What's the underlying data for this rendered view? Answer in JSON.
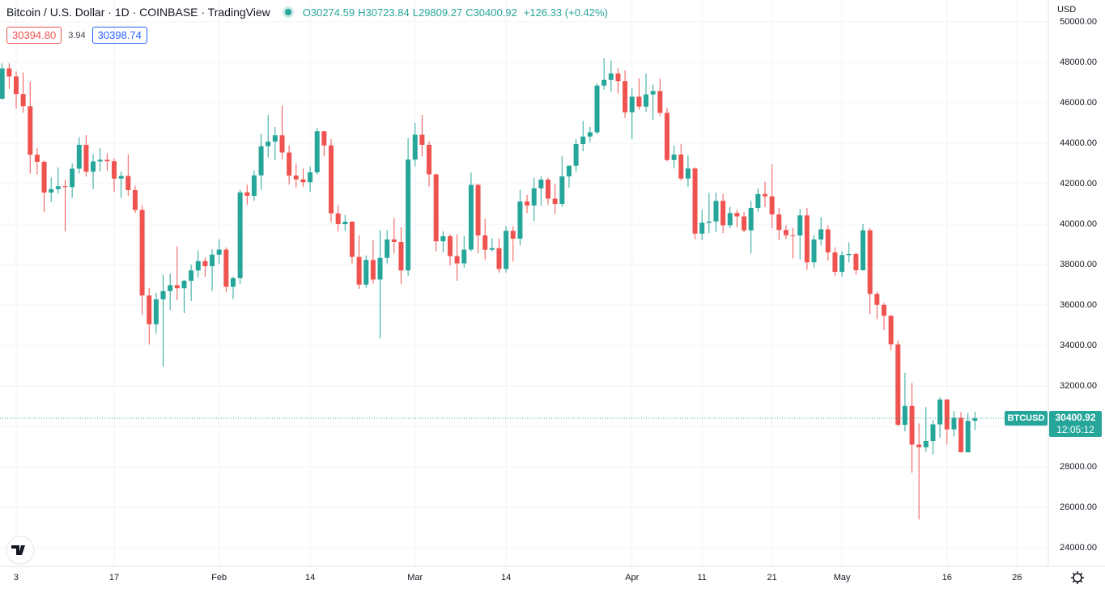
{
  "chart_data": {
    "type": "candlestick",
    "title": "Bitcoin / U.S. Dollar · 1D · COINBASE · TradingView",
    "ohlc_labels": [
      "O",
      "H",
      "L",
      "C"
    ],
    "change": "+126.33 (+0.42%)",
    "bid": "30394.80",
    "spread": "3.94",
    "ask": "30398.74",
    "currency": "USD",
    "symbol": "BTCUSD",
    "countdown": "12:05:12",
    "up_color": "#26a69a",
    "down_color": "#ef5350",
    "ylim": [
      23080,
      51080
    ],
    "yticks": [
      {
        "value": 24000,
        "label": "24000.00"
      },
      {
        "value": 26000,
        "label": "26000.00"
      },
      {
        "value": 28000,
        "label": "28000.00"
      },
      {
        "value": 30000,
        "label": "30000.00"
      },
      {
        "value": 32000,
        "label": "32000.00"
      },
      {
        "value": 34000,
        "label": "34000.00"
      },
      {
        "value": 36000,
        "label": "36000.00"
      },
      {
        "value": 38000,
        "label": "38000.00"
      },
      {
        "value": 40000,
        "label": "40000.00"
      },
      {
        "value": 42000,
        "label": "42000.00"
      },
      {
        "value": 44000,
        "label": "44000.00"
      },
      {
        "value": 46000,
        "label": "46000.00"
      },
      {
        "value": 48000,
        "label": "48000.00"
      },
      {
        "value": 50000,
        "label": "50000.00"
      }
    ],
    "grid": true,
    "categories": [
      null,
      null,
      "3",
      null,
      null,
      null,
      null,
      null,
      null,
      null,
      null,
      null,
      null,
      null,
      null,
      null,
      "17",
      null,
      null,
      null,
      null,
      null,
      null,
      null,
      null,
      null,
      null,
      null,
      null,
      null,
      null,
      "Feb",
      null,
      null,
      null,
      null,
      null,
      null,
      null,
      null,
      null,
      null,
      null,
      null,
      "14",
      null,
      null,
      null,
      null,
      null,
      null,
      null,
      null,
      null,
      null,
      null,
      null,
      null,
      null,
      "Mar",
      null,
      null,
      null,
      null,
      null,
      null,
      null,
      null,
      null,
      null,
      null,
      null,
      "14",
      null,
      null,
      null,
      null,
      null,
      null,
      null,
      null,
      null,
      null,
      null,
      null,
      null,
      null,
      null,
      null,
      null,
      "Apr",
      null,
      null,
      null,
      null,
      null,
      null,
      null,
      null,
      null,
      "11",
      null,
      null,
      null,
      null,
      null,
      null,
      null,
      null,
      null,
      "21",
      null,
      null,
      null,
      null,
      null,
      null,
      null,
      null,
      null,
      "May",
      null,
      null,
      null,
      null,
      null,
      null,
      null,
      null,
      null,
      null,
      null,
      null,
      null,
      null,
      "16",
      null,
      null,
      null,
      null,
      null,
      null,
      null,
      null,
      null,
      "26",
      null,
      null
    ],
    "open": [
      46200,
      47700,
      47300,
      46430,
      45830,
      43430,
      43080,
      41560,
      41730,
      41870,
      41830,
      42740,
      43920,
      42590,
      43100,
      43180,
      43110,
      42250,
      42380,
      41680,
      40700,
      36470,
      35050,
      36280,
      36690,
      36980,
      36830,
      37200,
      37710,
      38170,
      37920,
      38490,
      38740,
      36900,
      37330,
      41570,
      41400,
      42410,
      43850,
      44080,
      44390,
      43540,
      42400,
      42210,
      42070,
      42560,
      44590,
      43890,
      40530,
      40000,
      40120,
      38380,
      37010,
      38230,
      37260,
      38330,
      39240,
      39120,
      37710,
      43190,
      44420,
      43920,
      42460,
      39150,
      39400,
      38420,
      38060,
      38740,
      41940,
      39440,
      38730,
      38810,
      37780,
      39670,
      39280,
      41120,
      40920,
      41770,
      42200,
      41260,
      41000,
      42360,
      42890,
      43960,
      44330,
      44540,
      46850,
      47130,
      47450,
      47070,
      45530,
      46300,
      45810,
      46410,
      46580,
      45500,
      43170,
      43440,
      42250,
      42750,
      39530,
      40070,
      40130,
      41150,
      39940,
      40550,
      40380,
      39690,
      40800,
      41490,
      41370,
      40480,
      39710,
      39450,
      39440,
      40430,
      38110,
      39240,
      39740,
      38600,
      37640,
      38470,
      38520,
      37720,
      39690,
      36550,
      36010,
      35470,
      34060,
      30080,
      31010,
      29100,
      28970,
      29280,
      30100,
      31330,
      29850,
      30430,
      28720,
      30274.59,
      null,
      null,
      null,
      null,
      null,
      null,
      null,
      null
    ],
    "high": [
      47950,
      47950,
      47550,
      47500,
      47050,
      43750,
      43150,
      42300,
      42800,
      42200,
      43000,
      44300,
      44400,
      43450,
      43750,
      43500,
      43250,
      42600,
      43450,
      41900,
      40950,
      36850,
      36600,
      37500,
      37550,
      38900,
      37250,
      38000,
      38700,
      38350,
      38750,
      39250,
      38850,
      37400,
      41700,
      41950,
      42650,
      44450,
      45400,
      44800,
      45850,
      43900,
      43000,
      42750,
      42850,
      44750,
      44600,
      44200,
      40950,
      40450,
      40150,
      39450,
      38450,
      39200,
      39700,
      39700,
      40300,
      39850,
      44250,
      45000,
      45400,
      44100,
      42500,
      39650,
      39500,
      39500,
      39400,
      42550,
      42000,
      40250,
      39300,
      39300,
      39900,
      39900,
      41700,
      41450,
      42300,
      42350,
      42300,
      42000,
      43350,
      42900,
      44200,
      45100,
      44800,
      46950,
      48200,
      48100,
      47700,
      47600,
      46700,
      47200,
      47450,
      46900,
      47200,
      45750,
      43900,
      43950,
      43400,
      42800,
      40700,
      41550,
      41550,
      41500,
      40850,
      40700,
      40600,
      41150,
      41750,
      42100,
      42950,
      40800,
      39950,
      39800,
      40750,
      40800,
      39450,
      40350,
      39950,
      38850,
      38650,
      39100,
      38600,
      40000,
      39800,
      36650,
      36100,
      35500,
      34250,
      32650,
      32150,
      30150,
      30950,
      30300,
      31450,
      31350,
      30750,
      30700,
      30650,
      30723.84,
      null,
      null,
      null,
      null,
      null,
      null,
      null,
      null
    ],
    "low": [
      46150,
      46700,
      45700,
      45500,
      42500,
      42450,
      40600,
      41100,
      41500,
      39650,
      41300,
      42500,
      42350,
      41750,
      42600,
      42650,
      41600,
      41300,
      41400,
      40550,
      35500,
      34050,
      34600,
      32950,
      35750,
      36250,
      35600,
      36200,
      37350,
      37400,
      36700,
      38050,
      36650,
      36300,
      37050,
      40950,
      41150,
      41700,
      43300,
      43150,
      43200,
      41950,
      41800,
      41850,
      41600,
      42450,
      43350,
      40100,
      39650,
      39650,
      38050,
      36800,
      36850,
      37050,
      34350,
      38050,
      38550,
      37050,
      37450,
      42850,
      43350,
      41850,
      38650,
      38600,
      37950,
      37200,
      37850,
      38650,
      38550,
      38250,
      38650,
      37600,
      37600,
      38150,
      38950,
      40550,
      40150,
      40900,
      40950,
      40500,
      40850,
      41800,
      42600,
      43600,
      44050,
      44450,
      46650,
      46550,
      46450,
      45250,
      44200,
      45650,
      45550,
      45150,
      45350,
      43100,
      42750,
      42150,
      41850,
      39250,
      39200,
      39550,
      39600,
      39550,
      39800,
      39850,
      39600,
      38550,
      40600,
      40850,
      39800,
      39200,
      39250,
      38300,
      38250,
      37750,
      37850,
      38950,
      38200,
      37450,
      37400,
      38100,
      37500,
      37700,
      35550,
      35300,
      34750,
      33750,
      30000,
      29750,
      27700,
      25400,
      28750,
      28600,
      29450,
      29100,
      29500,
      28700,
      28700,
      29809.27,
      null,
      null,
      null,
      null,
      null,
      null,
      null,
      null
    ],
    "close": [
      47700,
      47300,
      46430,
      45830,
      43430,
      43080,
      41560,
      41730,
      41870,
      41830,
      42740,
      43920,
      42590,
      43100,
      43180,
      43110,
      42250,
      42380,
      41680,
      40700,
      36470,
      35050,
      36280,
      36690,
      36980,
      36830,
      37200,
      37710,
      38170,
      37920,
      38490,
      38740,
      36900,
      37330,
      41570,
      41400,
      42410,
      43850,
      44080,
      44390,
      43540,
      42400,
      42210,
      42070,
      42560,
      44590,
      43890,
      40530,
      40000,
      40120,
      38380,
      37010,
      38230,
      37260,
      38330,
      39240,
      39120,
      37710,
      43190,
      44420,
      43920,
      42460,
      39150,
      39400,
      38420,
      38060,
      38740,
      41940,
      39440,
      38730,
      38810,
      37780,
      39670,
      39280,
      41120,
      40920,
      41770,
      42200,
      41260,
      41000,
      42360,
      42890,
      43960,
      44330,
      44540,
      46850,
      47130,
      47450,
      47070,
      45530,
      46300,
      45810,
      46410,
      46580,
      45500,
      43170,
      43440,
      42250,
      42750,
      39530,
      40070,
      40130,
      41150,
      39940,
      40550,
      40380,
      39690,
      40800,
      41490,
      41370,
      40480,
      39710,
      39450,
      39440,
      40430,
      38110,
      39240,
      39740,
      38600,
      37640,
      38470,
      38520,
      37720,
      39690,
      36550,
      36010,
      35470,
      34060,
      30080,
      31010,
      29100,
      28970,
      29280,
      30100,
      31330,
      29850,
      30430,
      28720,
      30274.59,
      30400.92,
      null,
      null,
      null,
      null,
      null,
      null,
      null,
      null
    ]
  }
}
